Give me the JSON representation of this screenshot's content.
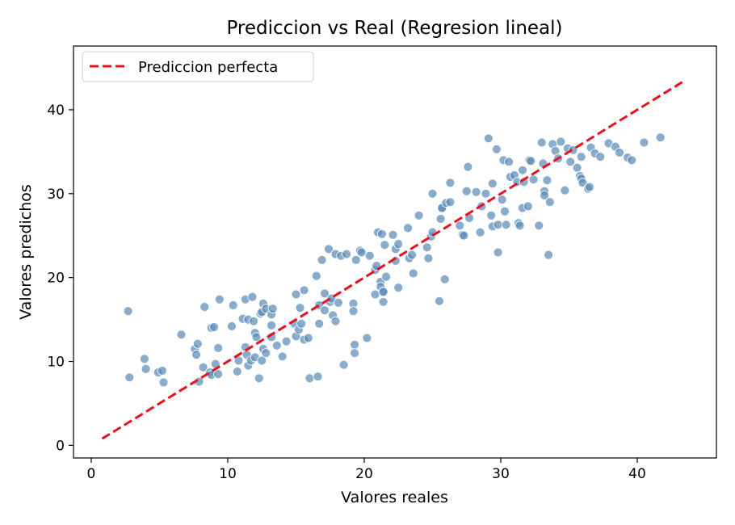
{
  "chart_data": {
    "type": "scatter",
    "title": "Prediccion vs Real (Regresion lineal)",
    "xlabel": "Valores reales",
    "ylabel": "Valores predichos",
    "xlim": [
      -1.3,
      45.8
    ],
    "ylim": [
      -1.5,
      47.6
    ],
    "xticks": [
      0,
      10,
      20,
      30,
      40
    ],
    "yticks": [
      0,
      10,
      20,
      30,
      40
    ],
    "grid": false,
    "legend": {
      "position": "upper-left",
      "entries": [
        "Prediccion perfecta"
      ]
    },
    "colors": {
      "points": "#5b8bb8",
      "point_edge": "#ffffff",
      "reference_line": "#e8121c"
    },
    "reference_line": {
      "name": "Prediccion perfecta",
      "style": "dashed",
      "x": [
        0.8,
        43.4
      ],
      "y": [
        0.8,
        43.4
      ]
    },
    "series": [
      {
        "points": [
          [
            2.7,
            16.0
          ],
          [
            2.8,
            8.1
          ],
          [
            3.9,
            10.3
          ],
          [
            4.0,
            9.1
          ],
          [
            4.9,
            8.7
          ],
          [
            5.2,
            8.9
          ],
          [
            5.3,
            7.5
          ],
          [
            6.6,
            13.2
          ],
          [
            7.6,
            11.5
          ],
          [
            7.7,
            10.8
          ],
          [
            7.8,
            12.1
          ],
          [
            7.9,
            7.6
          ],
          [
            8.2,
            9.3
          ],
          [
            8.3,
            16.5
          ],
          [
            8.7,
            8.7
          ],
          [
            8.8,
            8.4
          ],
          [
            8.8,
            14.0
          ],
          [
            9.0,
            14.1
          ],
          [
            9.1,
            9.7
          ],
          [
            9.3,
            11.6
          ],
          [
            9.3,
            8.5
          ],
          [
            9.4,
            17.4
          ],
          [
            10.3,
            14.2
          ],
          [
            10.4,
            16.7
          ],
          [
            10.7,
            8.8
          ],
          [
            10.8,
            10.1
          ],
          [
            11.1,
            15.1
          ],
          [
            11.3,
            11.7
          ],
          [
            11.3,
            17.4
          ],
          [
            11.4,
            10.8
          ],
          [
            11.5,
            15.0
          ],
          [
            11.5,
            9.5
          ],
          [
            11.7,
            10.1
          ],
          [
            11.8,
            17.7
          ],
          [
            11.9,
            14.8
          ],
          [
            12.0,
            13.4
          ],
          [
            12.0,
            10.5
          ],
          [
            12.1,
            12.9
          ],
          [
            12.3,
            8.0
          ],
          [
            12.4,
            15.7
          ],
          [
            12.5,
            10.1
          ],
          [
            12.5,
            15.9
          ],
          [
            12.6,
            11.5
          ],
          [
            12.6,
            16.9
          ],
          [
            12.8,
            11.0
          ],
          [
            12.8,
            16.3
          ],
          [
            13.2,
            15.6
          ],
          [
            13.3,
            16.3
          ],
          [
            13.2,
            14.3
          ],
          [
            13.2,
            12.9
          ],
          [
            13.6,
            11.9
          ],
          [
            14.0,
            10.6
          ],
          [
            14.3,
            12.4
          ],
          [
            14.9,
            14.5
          ],
          [
            15.0,
            13.0
          ],
          [
            15.0,
            18.0
          ],
          [
            15.2,
            13.8
          ],
          [
            15.3,
            16.4
          ],
          [
            15.4,
            14.5
          ],
          [
            15.6,
            12.6
          ],
          [
            15.6,
            18.5
          ],
          [
            15.9,
            12.8
          ],
          [
            16.0,
            8.0
          ],
          [
            16.5,
            20.2
          ],
          [
            16.6,
            8.2
          ],
          [
            16.7,
            14.5
          ],
          [
            16.7,
            16.7
          ],
          [
            16.9,
            22.1
          ],
          [
            17.1,
            18.1
          ],
          [
            17.1,
            16.1
          ],
          [
            17.4,
            23.4
          ],
          [
            17.5,
            17.1
          ],
          [
            17.6,
            17.5
          ],
          [
            17.7,
            15.5
          ],
          [
            17.9,
            14.8
          ],
          [
            17.9,
            22.8
          ],
          [
            18.1,
            17.0
          ],
          [
            18.3,
            22.6
          ],
          [
            18.5,
            9.6
          ],
          [
            18.7,
            22.8
          ],
          [
            19.2,
            16.9
          ],
          [
            19.2,
            16.0
          ],
          [
            19.3,
            12.0
          ],
          [
            19.3,
            11.0
          ],
          [
            19.4,
            22.1
          ],
          [
            19.7,
            23.2
          ],
          [
            19.8,
            23.0
          ],
          [
            20.2,
            12.8
          ],
          [
            20.4,
            22.6
          ],
          [
            20.8,
            18.0
          ],
          [
            20.8,
            20.9
          ],
          [
            20.9,
            21.4
          ],
          [
            21.0,
            25.4
          ],
          [
            21.2,
            19.5
          ],
          [
            21.2,
            18.9
          ],
          [
            21.3,
            25.2
          ],
          [
            21.4,
            18.3
          ],
          [
            21.4,
            18.3
          ],
          [
            21.4,
            17.1
          ],
          [
            21.5,
            23.9
          ],
          [
            21.6,
            20.1
          ],
          [
            22.1,
            25.1
          ],
          [
            22.3,
            22.0
          ],
          [
            22.3,
            23.4
          ],
          [
            22.5,
            24.0
          ],
          [
            22.5,
            18.8
          ],
          [
            23.2,
            25.9
          ],
          [
            23.3,
            22.3
          ],
          [
            23.5,
            22.7
          ],
          [
            23.6,
            20.5
          ],
          [
            24.0,
            27.4
          ],
          [
            24.6,
            23.6
          ],
          [
            24.7,
            22.3
          ],
          [
            24.9,
            24.9
          ],
          [
            25.0,
            30.0
          ],
          [
            25.0,
            25.4
          ],
          [
            25.5,
            17.2
          ],
          [
            25.6,
            27.0
          ],
          [
            25.7,
            28.3
          ],
          [
            25.7,
            28.3
          ],
          [
            25.9,
            19.8
          ],
          [
            26.0,
            28.9
          ],
          [
            26.3,
            31.3
          ],
          [
            26.3,
            29.0
          ],
          [
            27.0,
            26.2
          ],
          [
            27.2,
            25.1
          ],
          [
            27.3,
            25.0
          ],
          [
            27.5,
            30.3
          ],
          [
            27.6,
            33.2
          ],
          [
            27.7,
            27.1
          ],
          [
            28.2,
            30.2
          ],
          [
            28.5,
            25.4
          ],
          [
            28.6,
            28.5
          ],
          [
            28.9,
            30.0
          ],
          [
            29.1,
            36.6
          ],
          [
            29.3,
            27.4
          ],
          [
            29.4,
            31.2
          ],
          [
            29.4,
            26.1
          ],
          [
            29.7,
            35.3
          ],
          [
            29.8,
            23.0
          ],
          [
            29.8,
            26.3
          ],
          [
            30.1,
            29.3
          ],
          [
            30.2,
            34.0
          ],
          [
            30.3,
            27.9
          ],
          [
            30.4,
            26.3
          ],
          [
            30.6,
            33.8
          ],
          [
            30.7,
            32.0
          ],
          [
            31.0,
            32.2
          ],
          [
            31.2,
            31.4
          ],
          [
            31.3,
            26.5
          ],
          [
            31.4,
            26.2
          ],
          [
            31.6,
            32.8
          ],
          [
            31.6,
            28.3
          ],
          [
            31.7,
            31.4
          ],
          [
            32.0,
            28.5
          ],
          [
            32.1,
            34.0
          ],
          [
            32.2,
            33.9
          ],
          [
            32.4,
            31.7
          ],
          [
            32.8,
            26.2
          ],
          [
            33.0,
            36.1
          ],
          [
            33.1,
            33.6
          ],
          [
            33.2,
            30.3
          ],
          [
            33.2,
            29.8
          ],
          [
            33.4,
            31.6
          ],
          [
            33.5,
            22.7
          ],
          [
            33.6,
            29.0
          ],
          [
            33.8,
            35.9
          ],
          [
            34.0,
            35.1
          ],
          [
            34.2,
            34.2
          ],
          [
            34.4,
            36.2
          ],
          [
            34.7,
            30.4
          ],
          [
            34.9,
            35.4
          ],
          [
            35.1,
            33.8
          ],
          [
            35.3,
            35.2
          ],
          [
            35.6,
            33.1
          ],
          [
            35.8,
            32.1
          ],
          [
            35.9,
            34.4
          ],
          [
            35.9,
            31.8
          ],
          [
            36.0,
            31.3
          ],
          [
            36.4,
            30.6
          ],
          [
            36.5,
            30.8
          ],
          [
            36.6,
            35.5
          ],
          [
            36.9,
            34.8
          ],
          [
            37.3,
            34.4
          ],
          [
            37.9,
            36.0
          ],
          [
            38.4,
            35.6
          ],
          [
            38.7,
            34.9
          ],
          [
            39.3,
            34.3
          ],
          [
            39.6,
            34.0
          ],
          [
            40.5,
            36.1
          ],
          [
            41.7,
            36.7
          ]
        ]
      }
    ]
  }
}
